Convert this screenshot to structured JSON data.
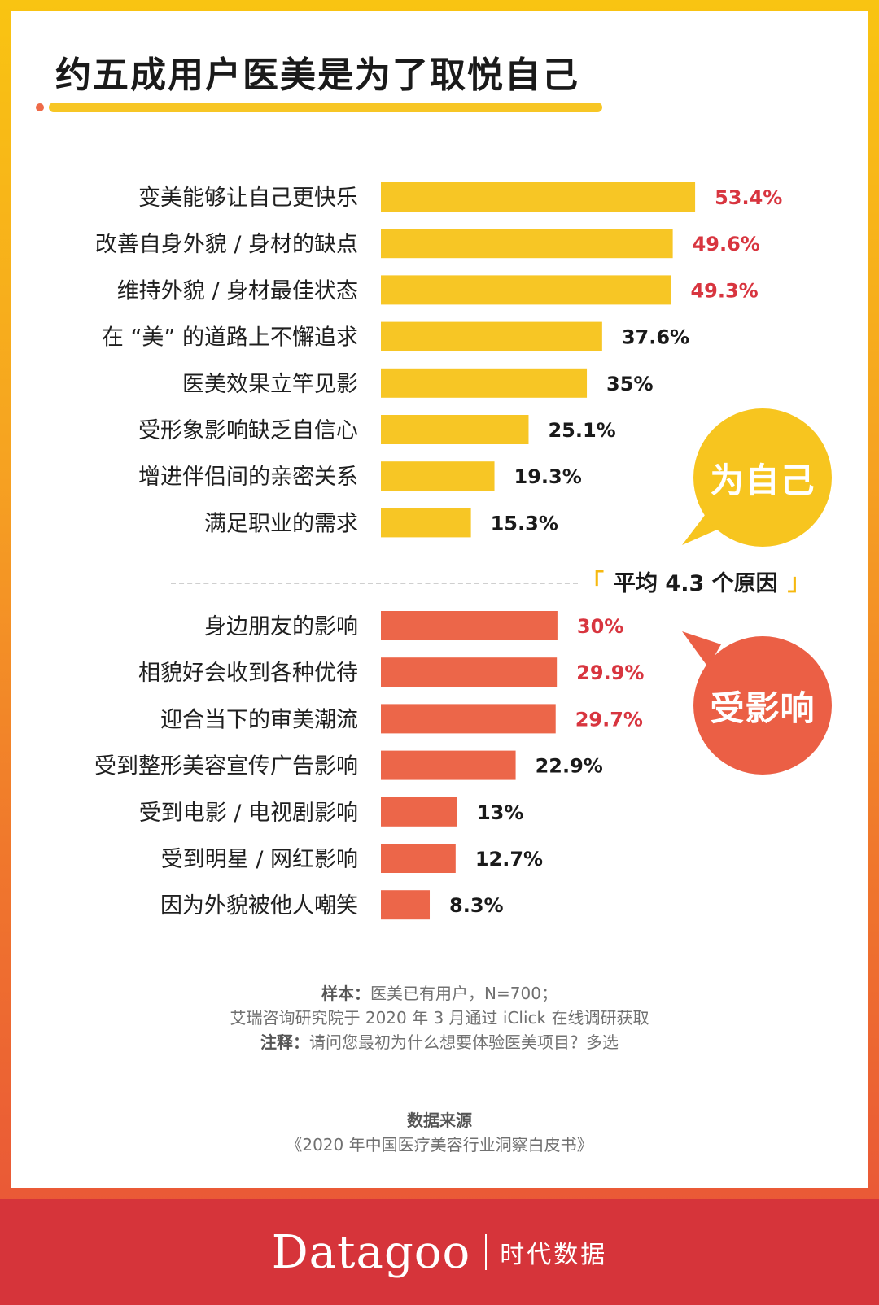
{
  "title": "约五成用户医美是为了取悦自己",
  "labels": {
    "self_group": "为自己",
    "influence_group": "受影响",
    "average_text": "平均 4.3 个原因",
    "bracket_left": "「",
    "bracket_right": "」"
  },
  "colors": {
    "self_bar": "#f7c625",
    "influence_bar": "#ec6649",
    "highlight_value": "#d8353f",
    "normal_value": "#1a1a1a"
  },
  "chart_data": [
    {
      "type": "bar",
      "orientation": "horizontal",
      "group": "为自己",
      "categories": [
        "变美能够让自己更快乐",
        "改善自身外貌 / 身材的缺点",
        "维持外貌 / 身材最佳状态",
        "在 “美” 的道路上不懈追求",
        "医美效果立竿见影",
        "受形象影响缺乏自信心",
        "增进伴侣间的亲密关系",
        "满足职业的需求"
      ],
      "values": [
        53.4,
        49.6,
        49.3,
        37.6,
        35,
        25.1,
        19.3,
        15.3
      ],
      "value_labels": [
        "53.4%",
        "49.6%",
        "49.3%",
        "37.6%",
        "35%",
        "25.1%",
        "19.3%",
        "15.3%"
      ],
      "highlighted": [
        true,
        true,
        true,
        false,
        false,
        false,
        false,
        false
      ],
      "unit": "%"
    },
    {
      "type": "bar",
      "orientation": "horizontal",
      "group": "受影响",
      "categories": [
        "身边朋友的影响",
        "相貌好会收到各种优待",
        "迎合当下的审美潮流",
        "受到整形美容宣传广告影响",
        "受到电影 / 电视剧影响",
        "受到明星 / 网红影响",
        "因为外貌被他人嘲笑"
      ],
      "values": [
        30,
        29.9,
        29.7,
        22.9,
        13,
        12.7,
        8.3
      ],
      "value_labels": [
        "30%",
        "29.9%",
        "29.7%",
        "22.9%",
        "13%",
        "12.7%",
        "8.3%"
      ],
      "highlighted": [
        true,
        true,
        true,
        false,
        false,
        false,
        false
      ],
      "unit": "%"
    }
  ],
  "notes": {
    "sample_label": "样本：",
    "sample_text": "医美已有用户，N=700；",
    "sample_line2": "艾瑞咨询研究院于 2020 年 3 月通过 iClick 在线调研获取",
    "note_label": "注释：",
    "note_text": "请问您最初为什么想要体验医美项目？多选"
  },
  "source": {
    "title": "数据来源",
    "text": "《2020 年中国医疗美容行业洞察白皮书》"
  },
  "footer": {
    "brand": "Datagoo",
    "brand_cn": "时代数据"
  }
}
